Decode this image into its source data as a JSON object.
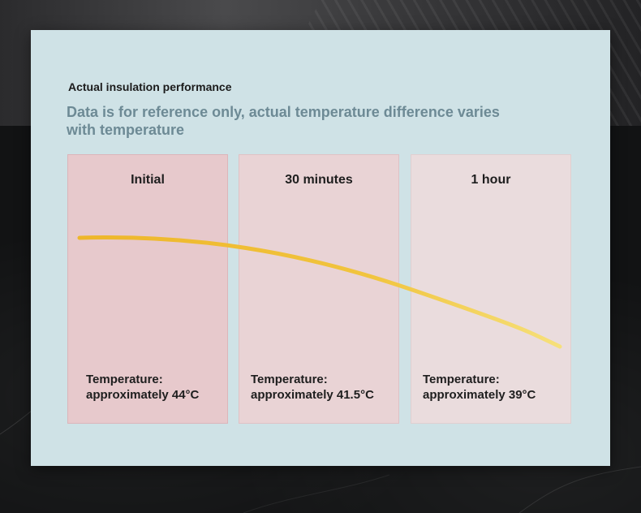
{
  "header": {
    "eyebrow": "Actual insulation performance",
    "note": "Data is for reference only, actual temperature difference varies with temperature"
  },
  "columns": [
    {
      "label": "Initial",
      "temp_label": "Temperature:",
      "temp_value": "approximately 44°C"
    },
    {
      "label": "30 minutes",
      "temp_label": "Temperature:",
      "temp_value": "approximately 41.5°C"
    },
    {
      "label": "1 hour",
      "temp_label": "Temperature:",
      "temp_value": "approximately 39°C"
    }
  ],
  "colors": {
    "panel": "#cfe2e6",
    "curve": "#f0c23a",
    "note_text": "#6d8a95"
  }
}
